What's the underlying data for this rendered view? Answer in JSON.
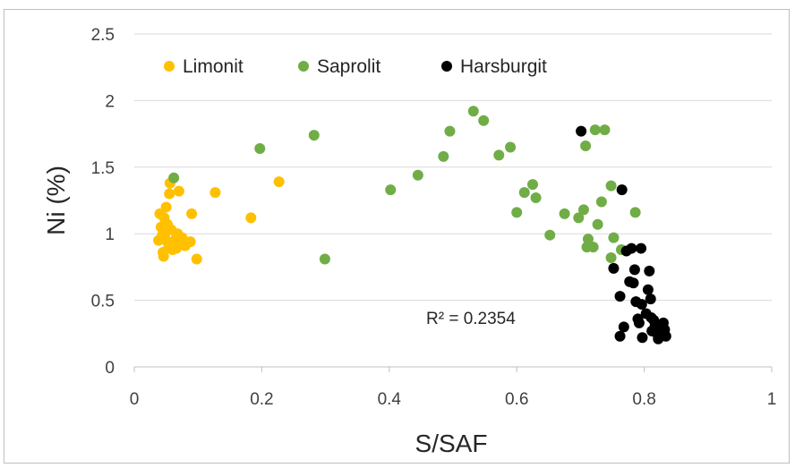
{
  "chart_data": {
    "type": "scatter",
    "xlabel": "S/SAF",
    "ylabel": "Ni (%)",
    "xlim": [
      0,
      1
    ],
    "ylim": [
      0,
      2.5
    ],
    "x_ticks": [
      "0",
      "0.2",
      "0.4",
      "0.6",
      "0.8",
      "1"
    ],
    "y_ticks": [
      "0",
      "0.5",
      "1",
      "1.5",
      "2",
      "2.5"
    ],
    "grid": "horizontal",
    "legend_position": "top-left",
    "annotation": "R² = 0.2354",
    "series": [
      {
        "name": "Limonit",
        "color": "#ffc000",
        "points": [
          [
            0.038,
            0.95
          ],
          [
            0.04,
            1.15
          ],
          [
            0.042,
            1.05
          ],
          [
            0.044,
            0.99
          ],
          [
            0.045,
            0.86
          ],
          [
            0.046,
            0.83
          ],
          [
            0.047,
            1.12
          ],
          [
            0.048,
            1.0
          ],
          [
            0.05,
            1.2
          ],
          [
            0.05,
            0.95
          ],
          [
            0.052,
            1.07
          ],
          [
            0.054,
            0.9
          ],
          [
            0.055,
            1.3
          ],
          [
            0.056,
            1.38
          ],
          [
            0.058,
            1.03
          ],
          [
            0.06,
            0.88
          ],
          [
            0.062,
            0.93
          ],
          [
            0.065,
            0.96
          ],
          [
            0.066,
            0.89
          ],
          [
            0.068,
            1.0
          ],
          [
            0.07,
            1.32
          ],
          [
            0.072,
            0.95
          ],
          [
            0.075,
            0.97
          ],
          [
            0.08,
            0.91
          ],
          [
            0.088,
            0.94
          ],
          [
            0.09,
            1.15
          ],
          [
            0.098,
            0.81
          ],
          [
            0.127,
            1.31
          ],
          [
            0.183,
            1.12
          ],
          [
            0.227,
            1.39
          ]
        ]
      },
      {
        "name": "Saprolit",
        "color": "#70ad47",
        "points": [
          [
            0.062,
            1.42
          ],
          [
            0.197,
            1.64
          ],
          [
            0.282,
            1.74
          ],
          [
            0.299,
            0.81
          ],
          [
            0.402,
            1.33
          ],
          [
            0.445,
            1.44
          ],
          [
            0.485,
            1.58
          ],
          [
            0.495,
            1.77
          ],
          [
            0.532,
            1.92
          ],
          [
            0.548,
            1.85
          ],
          [
            0.572,
            1.59
          ],
          [
            0.59,
            1.65
          ],
          [
            0.6,
            1.16
          ],
          [
            0.612,
            1.31
          ],
          [
            0.625,
            1.37
          ],
          [
            0.63,
            1.27
          ],
          [
            0.652,
            0.99
          ],
          [
            0.675,
            1.15
          ],
          [
            0.697,
            1.12
          ],
          [
            0.705,
            1.18
          ],
          [
            0.708,
            1.66
          ],
          [
            0.71,
            0.9
          ],
          [
            0.712,
            0.96
          ],
          [
            0.72,
            0.9
          ],
          [
            0.723,
            1.78
          ],
          [
            0.727,
            1.07
          ],
          [
            0.733,
            1.24
          ],
          [
            0.738,
            1.78
          ],
          [
            0.748,
            1.36
          ],
          [
            0.748,
            0.82
          ],
          [
            0.752,
            0.97
          ],
          [
            0.764,
            0.88
          ],
          [
            0.786,
            1.16
          ]
        ]
      },
      {
        "name": "Harsburgit",
        "color": "#000000",
        "points": [
          [
            0.701,
            1.77
          ],
          [
            0.765,
            1.33
          ],
          [
            0.752,
            0.74
          ],
          [
            0.762,
            0.53
          ],
          [
            0.762,
            0.23
          ],
          [
            0.768,
            0.3
          ],
          [
            0.772,
            0.87
          ],
          [
            0.777,
            0.64
          ],
          [
            0.78,
            0.89
          ],
          [
            0.783,
            0.63
          ],
          [
            0.785,
            0.73
          ],
          [
            0.787,
            0.49
          ],
          [
            0.79,
            0.36
          ],
          [
            0.792,
            0.33
          ],
          [
            0.795,
            0.89
          ],
          [
            0.796,
            0.47
          ],
          [
            0.797,
            0.22
          ],
          [
            0.803,
            0.4
          ],
          [
            0.806,
            0.58
          ],
          [
            0.808,
            0.72
          ],
          [
            0.81,
            0.51
          ],
          [
            0.811,
            0.37
          ],
          [
            0.812,
            0.27
          ],
          [
            0.815,
            0.35
          ],
          [
            0.817,
            0.31
          ],
          [
            0.82,
            0.25
          ],
          [
            0.822,
            0.21
          ],
          [
            0.826,
            0.26
          ],
          [
            0.83,
            0.33
          ],
          [
            0.832,
            0.28
          ],
          [
            0.834,
            0.23
          ]
        ]
      }
    ]
  }
}
